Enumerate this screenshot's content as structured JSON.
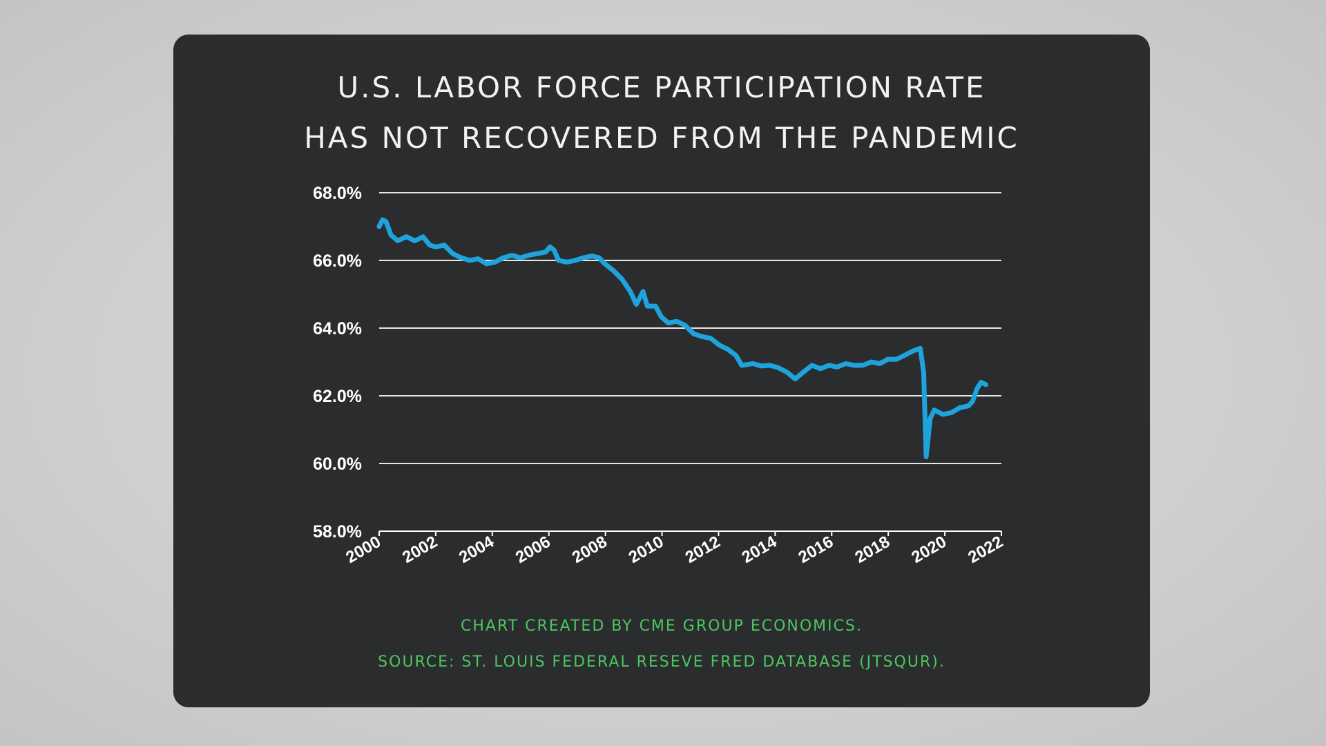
{
  "title_lines": [
    "U.S. LABOR FORCE PARTICIPATION RATE",
    "HAS NOT RECOVERED FROM THE PANDEMIC"
  ],
  "footer": {
    "credit": "CHART CREATED BY CME GROUP ECONOMICS.",
    "source": "SOURCE: ST. LOUIS FEDERAL RESEVE FRED DATABASE (JTSQUR)."
  },
  "colors": {
    "line": "#1ea3dc",
    "card": "#2b2c2e",
    "footer_text": "#4cc760",
    "grid": "#e6e6e6"
  },
  "chart_data": {
    "type": "line",
    "title": "U.S. LABOR FORCE PARTICIPATION RATE HAS NOT RECOVERED FROM THE PANDEMIC",
    "xlim": [
      2000,
      2022
    ],
    "ylim": [
      58,
      68
    ],
    "grid": true,
    "y_ticks": [
      58,
      60,
      62,
      64,
      66,
      68
    ],
    "y_tick_labels": [
      "58.0%",
      "60.0%",
      "62.0%",
      "64.0%",
      "66.0%",
      "68.0%"
    ],
    "x_ticks": [
      2000,
      2002,
      2004,
      2006,
      2008,
      2010,
      2012,
      2014,
      2016,
      2018,
      2020,
      2022
    ],
    "x_tick_labels": [
      "2000",
      "2002",
      "2004",
      "2006",
      "2008",
      "2010",
      "2012",
      "2014",
      "2016",
      "2018",
      "2020",
      "2022"
    ],
    "series": [
      {
        "x": [
          2000.0,
          2000.12,
          2000.24,
          2000.42,
          2000.66,
          2000.96,
          2001.26,
          2001.55,
          2001.79,
          2002.0,
          2002.3,
          2002.6,
          2002.9,
          2003.2,
          2003.5,
          2003.8,
          2004.1,
          2004.39,
          2004.69,
          2004.99,
          2005.29,
          2005.59,
          2005.89,
          2006.04,
          2006.19,
          2006.34,
          2006.64,
          2006.93,
          2007.23,
          2007.53,
          2007.77,
          2007.98,
          2008.28,
          2008.58,
          2008.88,
          2009.09,
          2009.33,
          2009.48,
          2009.77,
          2009.98,
          2010.22,
          2010.52,
          2010.82,
          2011.12,
          2011.42,
          2011.72,
          2012.02,
          2012.31,
          2012.61,
          2012.82,
          2013.21,
          2013.51,
          2013.81,
          2014.11,
          2014.41,
          2014.71,
          2015.0,
          2015.3,
          2015.6,
          2015.9,
          2016.2,
          2016.5,
          2016.8,
          2017.1,
          2017.4,
          2017.7,
          2017.99,
          2018.29,
          2018.59,
          2018.89,
          2019.13,
          2019.25,
          2019.34,
          2019.48,
          2019.63,
          2019.93,
          2020.23,
          2020.53,
          2020.83,
          2020.98,
          2021.13,
          2021.28,
          2021.45
        ],
        "y": [
          67.0,
          67.2,
          67.15,
          66.75,
          66.58,
          66.7,
          66.58,
          66.7,
          66.45,
          66.4,
          66.45,
          66.2,
          66.08,
          66.0,
          66.05,
          65.9,
          65.95,
          66.08,
          66.15,
          66.08,
          66.15,
          66.2,
          66.25,
          66.4,
          66.3,
          66.0,
          65.95,
          66.0,
          66.08,
          66.13,
          66.08,
          65.9,
          65.7,
          65.45,
          65.08,
          64.7,
          65.08,
          64.65,
          64.65,
          64.33,
          64.15,
          64.2,
          64.08,
          63.83,
          63.75,
          63.7,
          63.5,
          63.38,
          63.2,
          62.9,
          62.95,
          62.88,
          62.9,
          62.83,
          62.7,
          62.5,
          62.7,
          62.9,
          62.8,
          62.9,
          62.85,
          62.95,
          62.9,
          62.9,
          63.0,
          62.95,
          63.08,
          63.08,
          63.2,
          63.33,
          63.4,
          62.7,
          60.2,
          61.33,
          61.58,
          61.45,
          61.5,
          61.65,
          61.7,
          61.83,
          62.2,
          62.4,
          62.33
        ]
      }
    ]
  }
}
